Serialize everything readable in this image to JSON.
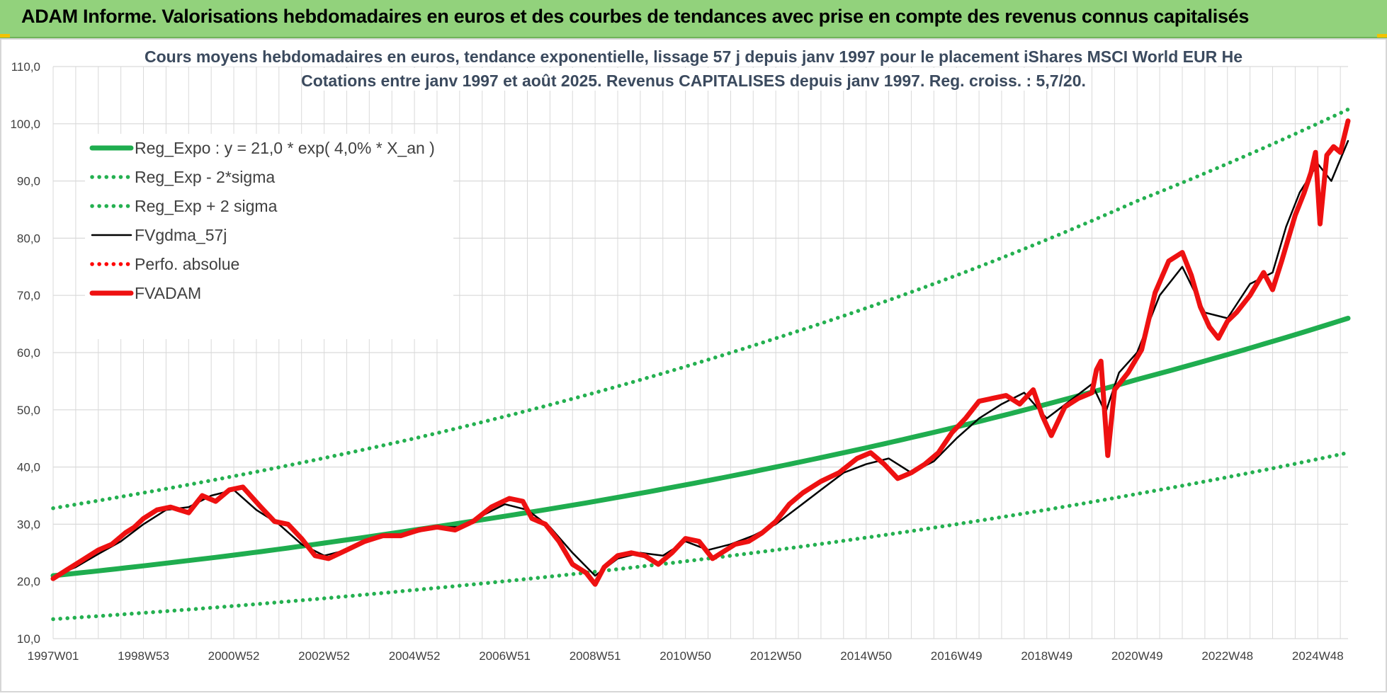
{
  "header": {
    "title": "ADAM Informe. Valorisations hebdomadaires en euros et des courbes de tendances avec prise en compte des revenus connus capitalisés"
  },
  "colors": {
    "header_bg": "#92d27c",
    "trend": "#1fad4f",
    "trend_band": "#24b050",
    "smoothed": "#000000",
    "perfo": "#ff0000",
    "fvadam": "#ee1111",
    "grid": "#d9d9d9"
  },
  "chart_data": {
    "type": "line",
    "title_lines": [
      "Cours moyens hebdomadaires en euros, tendance exponentielle, lissage 57 j depuis janv 1997 pour le placement iShares MSCI World EUR He",
      "Cotations entre janv 1997 et août 2025. Revenus CAPITALISES depuis janv 1997. Reg. croiss. : 5,7/20."
    ],
    "x_range": [
      1997.0,
      2025.67
    ],
    "ylim": [
      10,
      110
    ],
    "y_ticks": [
      "10,0",
      "20,0",
      "30,0",
      "40,0",
      "50,0",
      "60,0",
      "70,0",
      "80,0",
      "90,0",
      "100,0",
      "110,0"
    ],
    "y_tick_values": [
      10,
      20,
      30,
      40,
      50,
      60,
      70,
      80,
      90,
      100,
      110
    ],
    "x_ticks": [
      {
        "label": "1997W01",
        "x": 1997.0
      },
      {
        "label": "1998W53",
        "x": 1999.0
      },
      {
        "label": "2000W52",
        "x": 2001.0
      },
      {
        "label": "2002W52",
        "x": 2003.0
      },
      {
        "label": "2004W52",
        "x": 2005.0
      },
      {
        "label": "2006W51",
        "x": 2007.0
      },
      {
        "label": "2008W51",
        "x": 2009.0
      },
      {
        "label": "2010W50",
        "x": 2011.0
      },
      {
        "label": "2012W50",
        "x": 2013.0
      },
      {
        "label": "2014W50",
        "x": 2015.0
      },
      {
        "label": "2016W49",
        "x": 2017.0
      },
      {
        "label": "2018W49",
        "x": 2019.0
      },
      {
        "label": "2020W49",
        "x": 2021.0
      },
      {
        "label": "2022W48",
        "x": 2023.0
      },
      {
        "label": "2024W48",
        "x": 2025.0
      }
    ],
    "grid": true,
    "legend_position": "top-left",
    "series": [
      {
        "name": "Reg_Expo : y = 21,0 * exp( 4,0% *  X_an )",
        "style": "solid-thick",
        "color": "#1fad4f",
        "x": [
          1997.0,
          2001.0,
          2005.0,
          2009.0,
          2013.0,
          2017.0,
          2021.0,
          2025.67
        ],
        "values": [
          21.0,
          24.6,
          29.0,
          34.0,
          40.0,
          47.0,
          55.3,
          66.0
        ]
      },
      {
        "name": "Reg_Exp - 2*sigma",
        "style": "dotted",
        "color": "#24b050",
        "x": [
          1997.0,
          2001.0,
          2005.0,
          2009.0,
          2013.0,
          2017.0,
          2021.0,
          2025.67
        ],
        "values": [
          13.4,
          15.7,
          18.5,
          21.7,
          25.5,
          30.0,
          35.3,
          42.5
        ]
      },
      {
        "name": "Reg_Exp + 2 sigma",
        "style": "dotted",
        "color": "#24b050",
        "x": [
          1997.0,
          2001.0,
          2005.0,
          2009.0,
          2013.0,
          2017.0,
          2021.0,
          2025.67
        ],
        "values": [
          32.8,
          38.4,
          45.0,
          53.0,
          62.5,
          73.5,
          86.5,
          102.5
        ]
      },
      {
        "name": "FVgdma_57j",
        "style": "solid",
        "color": "#000000",
        "x": [
          1997.0,
          1997.5,
          1998.0,
          1998.5,
          1999.0,
          1999.5,
          2000.0,
          2000.5,
          2001.0,
          2001.5,
          2002.0,
          2002.5,
          2003.0,
          2003.5,
          2004.0,
          2004.5,
          2005.0,
          2005.5,
          2006.0,
          2006.5,
          2007.0,
          2007.5,
          2008.0,
          2008.5,
          2009.0,
          2009.5,
          2010.0,
          2010.5,
          2011.0,
          2011.5,
          2012.0,
          2012.5,
          2013.0,
          2013.5,
          2014.0,
          2014.5,
          2015.0,
          2015.5,
          2016.0,
          2016.5,
          2017.0,
          2017.5,
          2018.0,
          2018.5,
          2019.0,
          2019.5,
          2020.0,
          2020.3,
          2020.6,
          2021.0,
          2021.5,
          2022.0,
          2022.5,
          2023.0,
          2023.5,
          2024.0,
          2024.3,
          2024.6,
          2025.0,
          2025.3,
          2025.67
        ],
        "values": [
          20.8,
          22.5,
          24.8,
          27.0,
          30.0,
          32.5,
          33.0,
          35.0,
          36.0,
          32.5,
          30.0,
          26.5,
          24.5,
          25.5,
          27.5,
          28.0,
          28.5,
          29.5,
          29.5,
          31.5,
          33.5,
          32.5,
          29.5,
          25.0,
          21.0,
          24.0,
          25.0,
          24.5,
          27.0,
          25.5,
          26.5,
          28.0,
          30.0,
          33.0,
          36.0,
          39.0,
          40.5,
          41.5,
          39.0,
          41.0,
          45.0,
          48.5,
          51.0,
          53.0,
          48.5,
          51.5,
          54.5,
          49.5,
          56.5,
          60.0,
          70.0,
          75.0,
          67.0,
          66.0,
          72.0,
          74.0,
          82.0,
          88.0,
          93.0,
          90.0,
          97.0
        ]
      },
      {
        "name": "Perfo. absolue",
        "style": "dotted",
        "color": "#ff0000",
        "x": [],
        "values": []
      },
      {
        "name": "FVADAM",
        "style": "solid-thick",
        "color": "#ee1111",
        "x": [
          1997.0,
          1997.3,
          1997.6,
          1998.0,
          1998.3,
          1998.6,
          1998.8,
          1999.0,
          1999.3,
          1999.6,
          2000.0,
          2000.3,
          2000.6,
          2000.9,
          2001.2,
          2001.6,
          2001.9,
          2002.2,
          2002.5,
          2002.8,
          2003.1,
          2003.5,
          2003.9,
          2004.3,
          2004.7,
          2005.1,
          2005.5,
          2005.9,
          2006.3,
          2006.7,
          2007.1,
          2007.4,
          2007.6,
          2007.9,
          2008.2,
          2008.5,
          2008.8,
          2009.0,
          2009.2,
          2009.5,
          2009.8,
          2010.1,
          2010.4,
          2010.7,
          2011.0,
          2011.3,
          2011.6,
          2011.8,
          2012.1,
          2012.4,
          2012.7,
          2013.0,
          2013.3,
          2013.6,
          2014.0,
          2014.4,
          2014.8,
          2015.1,
          2015.4,
          2015.7,
          2016.0,
          2016.3,
          2016.6,
          2016.9,
          2017.2,
          2017.5,
          2017.8,
          2018.1,
          2018.4,
          2018.7,
          2018.9,
          2019.1,
          2019.4,
          2019.7,
          2020.0,
          2020.1,
          2020.2,
          2020.35,
          2020.5,
          2020.8,
          2021.1,
          2021.4,
          2021.7,
          2022.0,
          2022.2,
          2022.4,
          2022.6,
          2022.8,
          2023.0,
          2023.2,
          2023.5,
          2023.8,
          2024.0,
          2024.2,
          2024.5,
          2024.7,
          2024.85,
          2024.95,
          2025.05,
          2025.2,
          2025.35,
          2025.5,
          2025.67
        ],
        "values": [
          20.5,
          22.0,
          23.5,
          25.5,
          26.5,
          28.5,
          29.5,
          31.0,
          32.5,
          33.0,
          32.0,
          35.0,
          34.0,
          36.0,
          36.5,
          33.0,
          30.5,
          30.0,
          27.5,
          24.5,
          24.0,
          25.5,
          27.0,
          28.0,
          28.0,
          29.0,
          29.5,
          29.0,
          30.5,
          33.0,
          34.5,
          34.0,
          31.0,
          30.0,
          27.0,
          23.0,
          21.5,
          19.5,
          22.5,
          24.5,
          25.0,
          24.5,
          23.0,
          25.0,
          27.5,
          27.0,
          24.0,
          25.0,
          26.5,
          27.0,
          28.5,
          30.5,
          33.5,
          35.5,
          37.5,
          39.0,
          41.5,
          42.5,
          40.5,
          38.0,
          39.0,
          40.5,
          42.5,
          46.0,
          48.5,
          51.5,
          52.0,
          52.5,
          51.0,
          53.5,
          49.0,
          45.5,
          50.5,
          52.0,
          53.0,
          57.0,
          58.5,
          42.0,
          53.5,
          56.5,
          60.5,
          70.5,
          76.0,
          77.5,
          73.5,
          68.0,
          64.5,
          62.5,
          65.5,
          67.0,
          70.0,
          74.0,
          71.0,
          76.0,
          84.0,
          88.0,
          91.5,
          95.0,
          82.5,
          94.5,
          96.0,
          95.0,
          100.5
        ]
      }
    ]
  }
}
